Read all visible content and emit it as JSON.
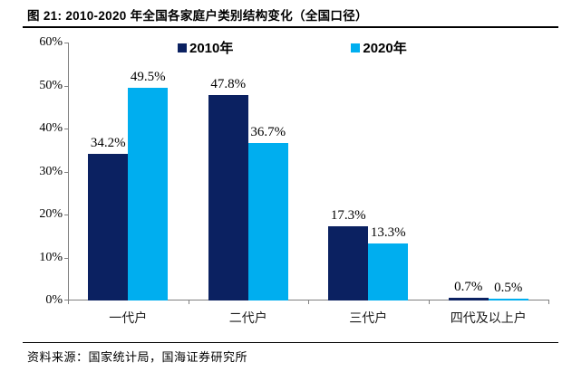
{
  "title": "图 21:  2010-2020 年全国各家庭户类别结构变化（全国口径）",
  "source": "资料来源：国家统计局，国海证券研究所",
  "colors": {
    "series_2010": "#0B2161",
    "series_2020": "#00AEEF",
    "axis": "#808080",
    "rule": "#000000"
  },
  "chart_data": {
    "type": "bar",
    "title": "2010-2020 年全国各家庭户类别结构变化（全国口径）",
    "categories": [
      "一代户",
      "二代户",
      "三代户",
      "四代及以上户"
    ],
    "series": [
      {
        "name": "2010年",
        "color": "#0B2161",
        "values": [
          34.2,
          47.8,
          17.3,
          0.7
        ],
        "labels": [
          "34.2%",
          "47.8%",
          "17.3%",
          "0.7%"
        ]
      },
      {
        "name": "2020年",
        "color": "#00AEEF",
        "values": [
          49.5,
          36.7,
          13.3,
          0.5
        ],
        "labels": [
          "49.5%",
          "36.7%",
          "13.3%",
          "0.5%"
        ]
      }
    ],
    "xlabel": "",
    "ylabel": "",
    "ylim": [
      0,
      60
    ],
    "y_ticks": [
      {
        "value": 0,
        "label": "0%"
      },
      {
        "value": 10,
        "label": "10%"
      },
      {
        "value": 20,
        "label": "20%"
      },
      {
        "value": 30,
        "label": "30%"
      },
      {
        "value": 40,
        "label": "40%"
      },
      {
        "value": 50,
        "label": "50%"
      },
      {
        "value": 60,
        "label": "60%"
      }
    ],
    "grid": false,
    "legend_position": "top"
  }
}
